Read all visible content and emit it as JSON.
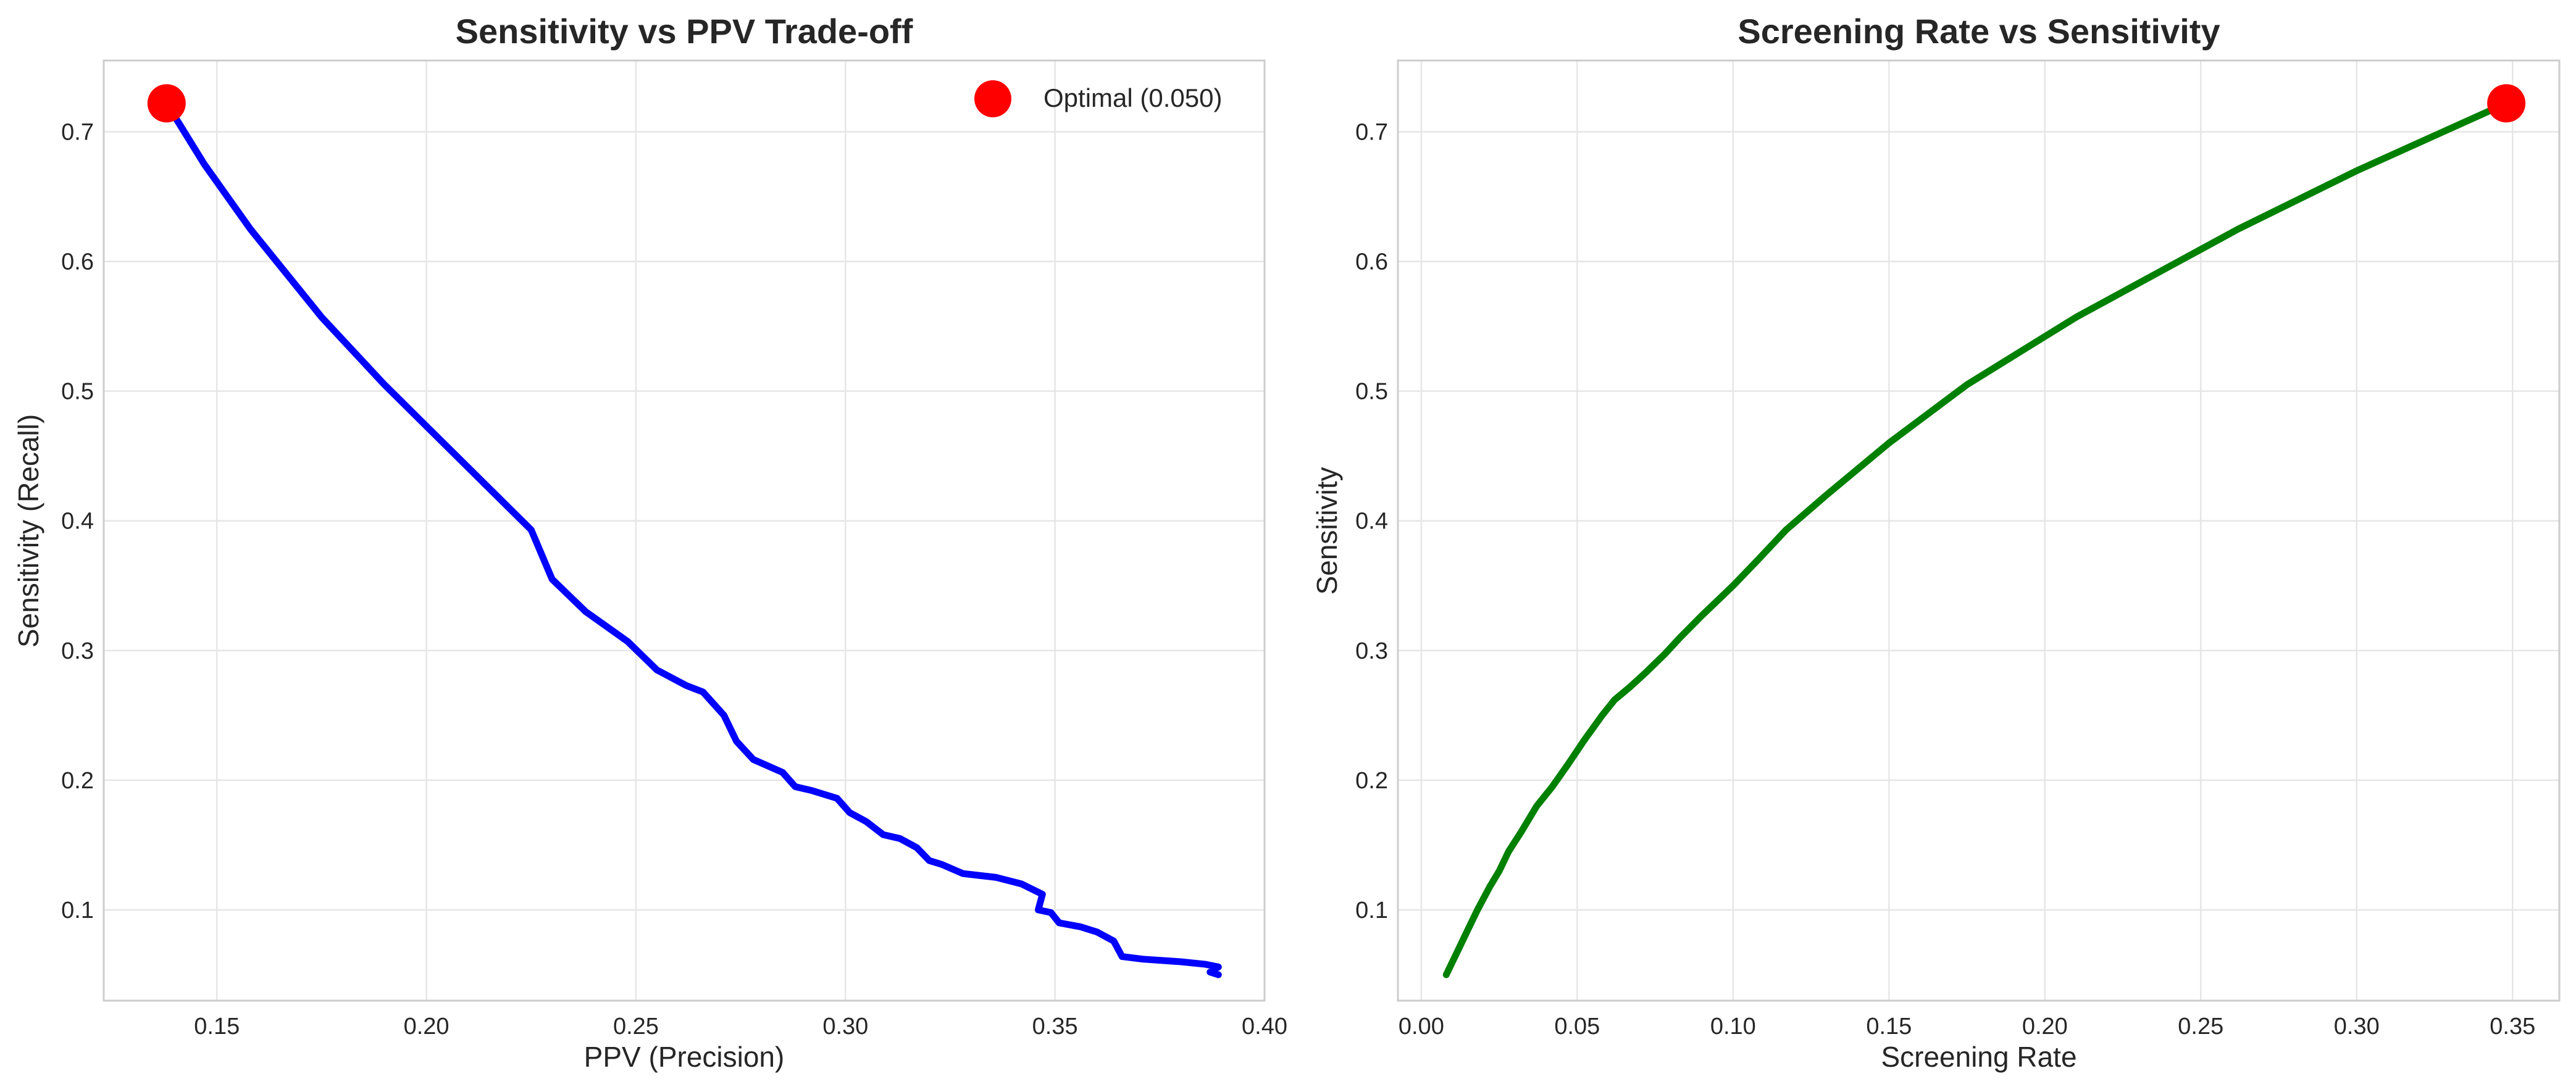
{
  "chart_data": [
    {
      "type": "line",
      "title": "Sensitivity vs PPV Trade-off",
      "xlabel": "PPV (Precision)",
      "ylabel": "Sensitivity (Recall)",
      "xlim": [
        0.123,
        0.4
      ],
      "ylim": [
        0.03,
        0.755
      ],
      "xticks": [
        0.15,
        0.2,
        0.25,
        0.3,
        0.35,
        0.4
      ],
      "xtick_labels": [
        "0.15",
        "0.20",
        "0.25",
        "0.30",
        "0.35",
        "0.40"
      ],
      "yticks": [
        0.1,
        0.2,
        0.3,
        0.4,
        0.5,
        0.6,
        0.7
      ],
      "ytick_labels": [
        "0.1",
        "0.2",
        "0.3",
        "0.4",
        "0.5",
        "0.6",
        "0.7"
      ],
      "grid": true,
      "legend_position": "top-right",
      "series": [
        {
          "color": "#0000ff",
          "x": [
            0.138,
            0.147,
            0.158,
            0.175,
            0.19,
            0.205,
            0.225,
            0.23,
            0.238,
            0.248,
            0.255,
            0.262,
            0.266,
            0.271,
            0.274,
            0.278,
            0.285,
            0.288,
            0.292,
            0.298,
            0.301,
            0.305,
            0.309,
            0.313,
            0.317,
            0.32,
            0.323,
            0.328,
            0.336,
            0.342,
            0.347,
            0.346,
            0.349,
            0.351,
            0.356,
            0.36,
            0.364,
            0.365,
            0.366,
            0.371,
            0.38,
            0.386,
            0.389,
            0.387,
            0.389
          ],
          "y": [
            0.722,
            0.675,
            0.625,
            0.557,
            0.505,
            0.457,
            0.393,
            0.355,
            0.33,
            0.307,
            0.285,
            0.273,
            0.268,
            0.25,
            0.23,
            0.216,
            0.206,
            0.195,
            0.192,
            0.186,
            0.175,
            0.168,
            0.158,
            0.155,
            0.148,
            0.138,
            0.135,
            0.128,
            0.125,
            0.12,
            0.112,
            0.1,
            0.098,
            0.09,
            0.087,
            0.083,
            0.076,
            0.07,
            0.064,
            0.062,
            0.06,
            0.058,
            0.056,
            0.052,
            0.05
          ]
        }
      ],
      "highlight": {
        "label": "Optimal (0.050)",
        "x": 0.138,
        "y": 0.722,
        "color": "#ff0000"
      }
    },
    {
      "type": "line",
      "title": "Screening Rate vs Sensitivity",
      "xlabel": "Screening Rate",
      "ylabel": "Sensitivity",
      "xlim": [
        -0.0075,
        0.365
      ],
      "ylim": [
        0.03,
        0.755
      ],
      "xticks": [
        0.0,
        0.05,
        0.1,
        0.15,
        0.2,
        0.25,
        0.3,
        0.35
      ],
      "xtick_labels": [
        "0.00",
        "0.05",
        "0.10",
        "0.15",
        "0.20",
        "0.25",
        "0.30",
        "0.35"
      ],
      "yticks": [
        0.1,
        0.2,
        0.3,
        0.4,
        0.5,
        0.6,
        0.7
      ],
      "ytick_labels": [
        "0.1",
        "0.2",
        "0.3",
        "0.4",
        "0.5",
        "0.6",
        "0.7"
      ],
      "grid": true,
      "series": [
        {
          "color": "#008000",
          "x": [
            0.008,
            0.01,
            0.012,
            0.015,
            0.018,
            0.022,
            0.025,
            0.028,
            0.032,
            0.037,
            0.042,
            0.047,
            0.052,
            0.058,
            0.062,
            0.067,
            0.072,
            0.078,
            0.083,
            0.09,
            0.1,
            0.108,
            0.117,
            0.13,
            0.15,
            0.175,
            0.21,
            0.262,
            0.3,
            0.348
          ],
          "y": [
            0.05,
            0.06,
            0.07,
            0.085,
            0.1,
            0.118,
            0.13,
            0.145,
            0.16,
            0.18,
            0.195,
            0.212,
            0.23,
            0.25,
            0.262,
            0.272,
            0.283,
            0.297,
            0.31,
            0.327,
            0.35,
            0.37,
            0.393,
            0.42,
            0.46,
            0.505,
            0.557,
            0.625,
            0.67,
            0.722
          ]
        }
      ],
      "highlight": {
        "x": 0.348,
        "y": 0.722,
        "color": "#ff0000"
      }
    }
  ]
}
